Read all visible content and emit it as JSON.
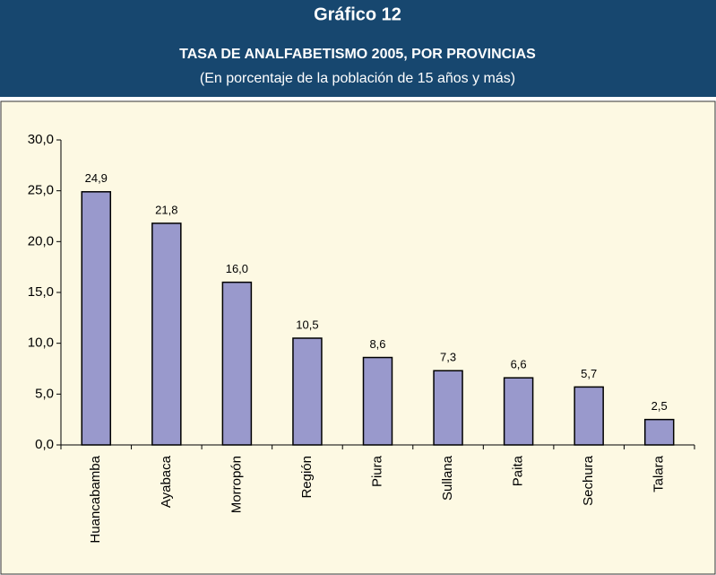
{
  "chart_data": {
    "type": "bar",
    "title": "Gráfico 12",
    "subtitle": "TASA DE ANALFABETISMO 2005, POR PROVINCIAS",
    "note": "(En porcentaje de la población de 15 años y más)",
    "categories": [
      "Huancabamba",
      "Ayabaca",
      "Morropón",
      "Región",
      "Piura",
      "Sullana",
      "Paita",
      "Sechura",
      "Talara"
    ],
    "values": [
      24.9,
      21.8,
      16.0,
      10.5,
      8.6,
      7.3,
      6.6,
      5.7,
      2.5
    ],
    "value_labels": [
      "24,9",
      "21,8",
      "16,0",
      "10,5",
      "8,6",
      "7,3",
      "6,6",
      "5,7",
      "2,5"
    ],
    "color": "#9999cc",
    "ylim": [
      0,
      30
    ],
    "yticks": [
      {
        "value": 0,
        "label": "0,0"
      },
      {
        "value": 5,
        "label": "5,0"
      },
      {
        "value": 10,
        "label": "10,0"
      },
      {
        "value": 15,
        "label": "15,0"
      },
      {
        "value": 20,
        "label": "20,0"
      },
      {
        "value": 25,
        "label": "25,0"
      },
      {
        "value": 30,
        "label": "30,0"
      }
    ],
    "grid": false
  }
}
